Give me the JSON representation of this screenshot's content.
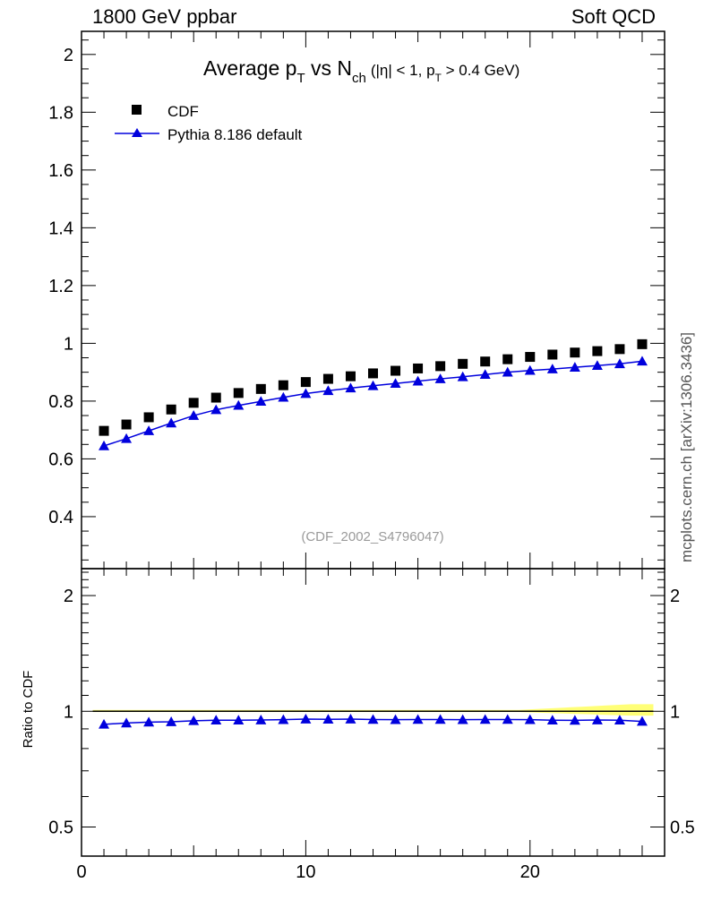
{
  "header": {
    "left": "1800 GeV ppbar",
    "right": "Soft QCD",
    "side": "mcplots.cern.ch [arXiv:1306.3436]"
  },
  "chart_data": [
    {
      "type": "scatter",
      "title_parts": {
        "avg": "Average p",
        "avg_sub": "T",
        "vs": " vs N",
        "vs_sub": "ch",
        "cut_a": "(|η| < 1, p",
        "cut_sub": "T",
        "cut_b": " > 0.4 GeV)"
      },
      "watermark": "(CDF_2002_S4796047)",
      "ylim": [
        0.22,
        2.08
      ],
      "xlim": [
        0,
        26
      ],
      "yticks": [
        "0.4",
        "0.6",
        "0.8",
        "1",
        "1.2",
        "1.4",
        "1.6",
        "1.8",
        "2"
      ],
      "legend_position": "top-left",
      "x": [
        1,
        2,
        3,
        4,
        5,
        6,
        7,
        8,
        9,
        10,
        11,
        12,
        13,
        14,
        15,
        16,
        17,
        18,
        19,
        20,
        21,
        22,
        23,
        24,
        25
      ],
      "series": [
        {
          "name": "CDF",
          "marker": "square",
          "color": "#000000",
          "values": [
            0.697,
            0.719,
            0.744,
            0.771,
            0.794,
            0.812,
            0.828,
            0.842,
            0.855,
            0.866,
            0.877,
            0.886,
            0.896,
            0.905,
            0.913,
            0.921,
            0.929,
            0.937,
            0.945,
            0.953,
            0.961,
            0.968,
            0.973,
            0.98,
            0.997
          ]
        },
        {
          "name": "Pythia 8.186 default",
          "marker": "triangle",
          "color": "#0000dd",
          "values": [
            0.645,
            0.67,
            0.697,
            0.724,
            0.75,
            0.77,
            0.785,
            0.799,
            0.813,
            0.826,
            0.836,
            0.845,
            0.853,
            0.861,
            0.869,
            0.877,
            0.884,
            0.892,
            0.9,
            0.906,
            0.911,
            0.917,
            0.923,
            0.929,
            0.938
          ]
        }
      ]
    },
    {
      "type": "scatter",
      "ylabel": "Ratio to CDF",
      "scale": "log",
      "ylim": [
        0.42,
        2.35
      ],
      "xlim": [
        0,
        26
      ],
      "yticks": [
        "0.5",
        "1",
        "2"
      ],
      "xticks": [
        "0",
        "10",
        "20"
      ],
      "band_color": "#ffff55",
      "reference": 1.0,
      "x": [
        1,
        2,
        3,
        4,
        5,
        6,
        7,
        8,
        9,
        10,
        11,
        12,
        13,
        14,
        15,
        16,
        17,
        18,
        19,
        20,
        21,
        22,
        23,
        24,
        25
      ],
      "series": [
        {
          "name": "Pythia 8.186 default",
          "marker": "triangle",
          "color": "#0000dd",
          "values": [
            0.925,
            0.932,
            0.937,
            0.939,
            0.945,
            0.948,
            0.948,
            0.949,
            0.951,
            0.954,
            0.953,
            0.954,
            0.952,
            0.951,
            0.952,
            0.952,
            0.951,
            0.952,
            0.952,
            0.951,
            0.948,
            0.947,
            0.949,
            0.948,
            0.941
          ]
        }
      ]
    }
  ]
}
